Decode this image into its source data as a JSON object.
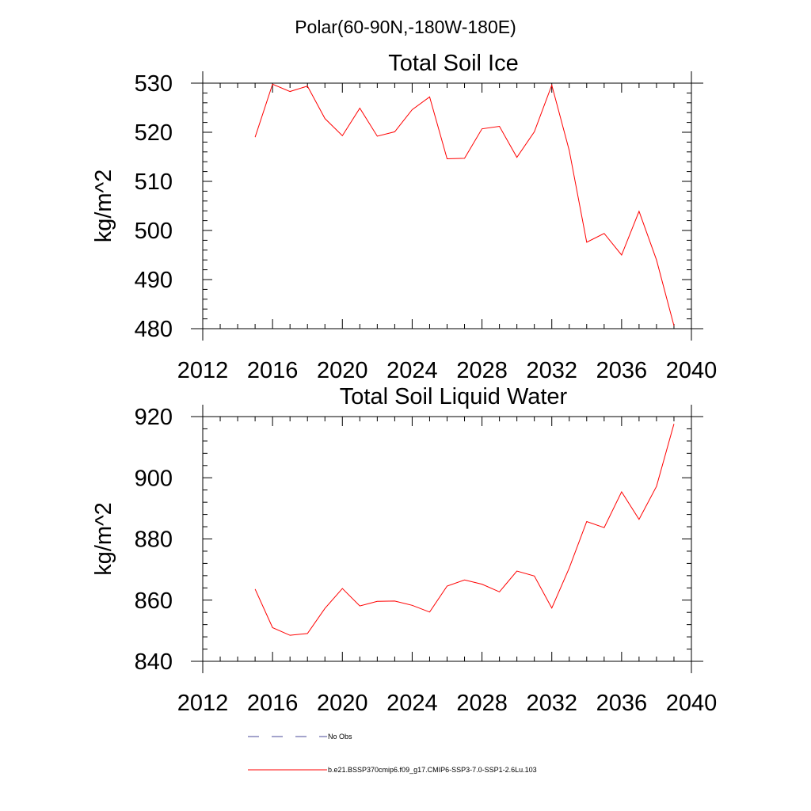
{
  "page_title": "Polar(60-90N,-180W-180E)",
  "chart_data": [
    {
      "type": "line",
      "title": "Total Soil Ice",
      "ylabel": "kg/m^2",
      "xlabel": "",
      "xlim": [
        2012,
        2040
      ],
      "ylim": [
        480,
        530
      ],
      "xticks": [
        2012,
        2016,
        2020,
        2024,
        2028,
        2032,
        2036,
        2040
      ],
      "yticks": [
        480,
        490,
        500,
        510,
        520,
        530
      ],
      "xminor_step": 1,
      "yminor_step": 2,
      "grid": false,
      "series": [
        {
          "name": "b.e21.BSSP370cmip6.f09_g17.CMIP6-SSP3-7.0-SSP1-2.6Lu.103",
          "color": "#ff0000",
          "x": [
            2015,
            2016,
            2017,
            2018,
            2019,
            2020,
            2021,
            2022,
            2023,
            2024,
            2025,
            2026,
            2027,
            2028,
            2029,
            2030,
            2031,
            2032,
            2033,
            2034,
            2035,
            2036,
            2037,
            2038,
            2039
          ],
          "y": [
            519.0,
            529.8,
            528.3,
            529.4,
            522.8,
            519.3,
            524.9,
            519.2,
            520.1,
            524.6,
            527.2,
            514.6,
            514.7,
            520.7,
            521.2,
            514.9,
            520.1,
            529.6,
            516.3,
            497.6,
            499.4,
            495.0,
            503.9,
            494.0,
            480.6
          ]
        }
      ]
    },
    {
      "type": "line",
      "title": "Total Soil Liquid Water",
      "ylabel": "kg/m^2",
      "xlabel": "",
      "xlim": [
        2012,
        2040
      ],
      "ylim": [
        840,
        920
      ],
      "xticks": [
        2012,
        2016,
        2020,
        2024,
        2028,
        2032,
        2036,
        2040
      ],
      "yticks": [
        840,
        860,
        880,
        900,
        920
      ],
      "xminor_step": 1,
      "yminor_step": 4,
      "grid": false,
      "series": [
        {
          "name": "b.e21.BSSP370cmip6.f09_g17.CMIP6-SSP3-7.0-SSP1-2.6Lu.103",
          "color": "#ff0000",
          "x": [
            2015,
            2016,
            2017,
            2018,
            2019,
            2020,
            2021,
            2022,
            2023,
            2024,
            2025,
            2026,
            2027,
            2028,
            2029,
            2030,
            2031,
            2032,
            2033,
            2034,
            2035,
            2036,
            2037,
            2038,
            2039
          ],
          "y": [
            863.6,
            851.0,
            848.5,
            849.1,
            857.3,
            863.8,
            858.1,
            859.6,
            859.7,
            858.3,
            856.1,
            864.6,
            866.6,
            865.2,
            862.7,
            869.5,
            867.9,
            857.4,
            870.5,
            885.7,
            883.7,
            895.4,
            886.4,
            897.2,
            917.6
          ]
        }
      ]
    }
  ],
  "legend": {
    "placement": "bottom",
    "items": [
      {
        "label": "No Obs",
        "color": "#4a4a9a",
        "style": "dashed"
      },
      {
        "label": "b.e21.BSSP370cmip6.f09_g17.CMIP6-SSP3-7.0-SSP1-2.6Lu.103",
        "color": "#ff0000",
        "style": "solid"
      }
    ]
  }
}
